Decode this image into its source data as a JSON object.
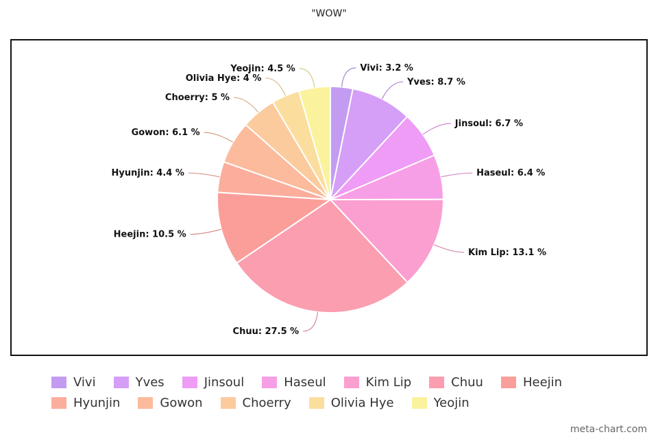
{
  "chart_data": {
    "type": "pie",
    "title": "\"WOW\"",
    "slices": [
      {
        "name": "Vivi",
        "value": 3.2,
        "label": "Vivi: 3.2 %",
        "color": "#c39cf2"
      },
      {
        "name": "Yves",
        "value": 8.7,
        "label": "Yves: 8.7 %",
        "color": "#d59ef7"
      },
      {
        "name": "Jinsoul",
        "value": 6.7,
        "label": "Jinsoul: 6.7 %",
        "color": "#ee9cf6"
      },
      {
        "name": "Haseul",
        "value": 6.4,
        "label": "Haseul: 6.4 %",
        "color": "#f79fe6"
      },
      {
        "name": "Kim Lip",
        "value": 13.1,
        "label": "Kim Lip: 13.1 %",
        "color": "#fa9fd0"
      },
      {
        "name": "Chuu",
        "value": 27.5,
        "label": "Chuu: 27.5 %",
        "color": "#fb9eb0"
      },
      {
        "name": "Heejin",
        "value": 10.5,
        "label": "Heejin: 10.5 %",
        "color": "#fb9e99"
      },
      {
        "name": "Hyunjin",
        "value": 4.4,
        "label": "Hyunjin: 4.4 %",
        "color": "#fbae9c"
      },
      {
        "name": "Gowon",
        "value": 6.1,
        "label": "Gowon: 6.1 %",
        "color": "#fbbb9c"
      },
      {
        "name": "Choerry",
        "value": 5,
        "label": "Choerry: 5 %",
        "color": "#fbcb9e"
      },
      {
        "name": "Olivia Hye",
        "value": 4,
        "label": "Olivia Hye: 4 %",
        "color": "#fbde9e"
      },
      {
        "name": "Yeojin",
        "value": 4.5,
        "label": "Yeojin: 4.5 %",
        "color": "#fbf29e"
      }
    ],
    "legend": {
      "position": "bottom"
    }
  },
  "footer": {
    "watermark": "meta-chart.com"
  }
}
